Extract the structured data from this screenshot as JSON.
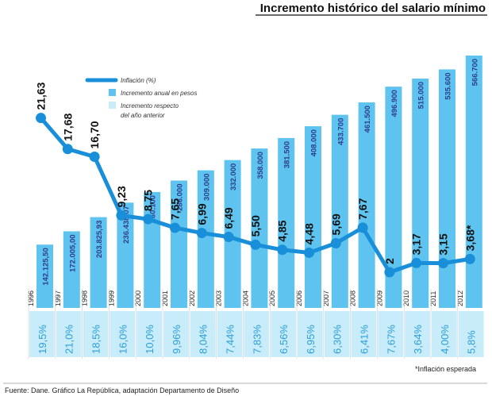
{
  "chart_data": {
    "type": "bar",
    "title": "Incremento histórico del salario mínimo",
    "categories": [
      "1996",
      "1997",
      "1998",
      "1999",
      "2000",
      "2001",
      "2002",
      "2003",
      "2004",
      "2005",
      "2006",
      "2007",
      "2008",
      "2009",
      "2010",
      "2011",
      "2012"
    ],
    "series": [
      {
        "name": "Incremento anual en pesos",
        "type": "bar",
        "values": [
          142125.5,
          172005.0,
          203825.93,
          236438.07,
          260100,
          286000,
          309000,
          332000,
          358000,
          381500,
          408000,
          433700,
          461500,
          496900,
          515000,
          535600,
          566700
        ],
        "labels": [
          "142.125,50",
          "172.005,00",
          "203.825,93",
          "236.438,07",
          "260.100",
          "286.000",
          "309.000",
          "332.000",
          "358.000",
          "381.500",
          "408.000",
          "433.700",
          "461.500",
          "496.900",
          "515.000",
          "535.600",
          "566.700"
        ]
      },
      {
        "name": "Inflación (%)",
        "type": "line",
        "values": [
          21.63,
          17.68,
          16.7,
          9.23,
          8.75,
          7.65,
          6.99,
          6.49,
          5.5,
          4.85,
          4.48,
          5.69,
          7.67,
          2,
          3.17,
          3.15,
          3.68
        ],
        "labels": [
          "21,63",
          "17,68",
          "16,70",
          "9,23",
          "8,75",
          "7,65",
          "6,99",
          "6,49",
          "5,50",
          "4,85",
          "4,48",
          "5,69",
          "7,67",
          "2",
          "3,17",
          "3,15",
          "3,68*"
        ]
      },
      {
        "name": "Incremento respecto del año anterior",
        "type": "table",
        "values": [
          19.5,
          21.0,
          18.5,
          16.0,
          10.0,
          9.96,
          8.04,
          7.44,
          7.83,
          6.56,
          6.95,
          6.3,
          6.41,
          7.67,
          3.64,
          4.0,
          5.8
        ],
        "labels": [
          "19,5%",
          "21,0%",
          "18,5%",
          "16,0%",
          "10,0%",
          "9,96%",
          "8,04%",
          "7,44%",
          "7,83%",
          "6,56%",
          "6,95%",
          "6,30%",
          "6,41%",
          "7,67%",
          "3,64%",
          "4,00%",
          "5,8%"
        ]
      }
    ],
    "legend": [
      "Inflación (%)",
      "Incremento anual en pesos",
      "Incremento respecto del año anterior"
    ],
    "legend_lines": [
      "Inflación (%)",
      "Incremento anual en pesos",
      "Incremento respecto",
      "del año anterior"
    ],
    "footnote": "*Inflación esperada",
    "source": "Fuente: Dane.  Gráfico La República, adaptación Departamento de Diseño",
    "colors": {
      "bar": "#5ec4ef",
      "line": "#1a8fd9",
      "pct_cell": "#c9ecfb",
      "pct_text": "#2a9fd6",
      "bar_label": "#2d3b8c"
    }
  }
}
